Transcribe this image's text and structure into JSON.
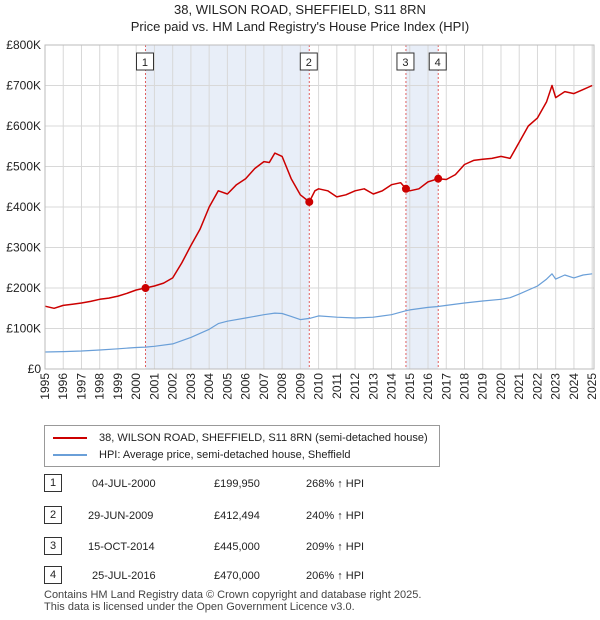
{
  "chart_data": {
    "type": "line",
    "title": "38, WILSON ROAD, SHEFFIELD, S11 8RN",
    "subtitle": "Price paid vs. HM Land Registry's House Price Index (HPI)",
    "xlabel": "",
    "ylabel": "",
    "xlim": [
      1995,
      2025.1
    ],
    "ylim": [
      0,
      800000
    ],
    "x_ticks": [
      "1995",
      "1996",
      "1997",
      "1998",
      "1999",
      "2000",
      "2001",
      "2002",
      "2003",
      "2004",
      "2005",
      "2006",
      "2007",
      "2008",
      "2009",
      "2010",
      "2011",
      "2012",
      "2013",
      "2014",
      "2015",
      "2016",
      "2017",
      "2018",
      "2019",
      "2020",
      "2021",
      "2022",
      "2023",
      "2024",
      "2025"
    ],
    "y_ticks": [
      {
        "value": 0,
        "label": "£0"
      },
      {
        "value": 100000,
        "label": "£100K"
      },
      {
        "value": 200000,
        "label": "£200K"
      },
      {
        "value": 300000,
        "label": "£300K"
      },
      {
        "value": 400000,
        "label": "£400K"
      },
      {
        "value": 500000,
        "label": "£500K"
      },
      {
        "value": 600000,
        "label": "£600K"
      },
      {
        "value": 700000,
        "label": "£700K"
      },
      {
        "value": 800000,
        "label": "£800K"
      }
    ],
    "grid": true,
    "series": [
      {
        "name": "38, WILSON ROAD, SHEFFIELD, S11 8RN (semi-detached house)",
        "color": "#cc0000",
        "x": [
          1995.0,
          1995.5,
          1996.0,
          1996.5,
          1997.0,
          1997.5,
          1998.0,
          1998.5,
          1999.0,
          1999.5,
          2000.0,
          2000.5,
          2001.0,
          2001.5,
          2002.0,
          2002.5,
          2003.0,
          2003.5,
          2004.0,
          2004.5,
          2005.0,
          2005.5,
          2006.0,
          2006.5,
          2007.0,
          2007.3,
          2007.6,
          2008.0,
          2008.5,
          2009.0,
          2009.49,
          2009.8,
          2010.0,
          2010.5,
          2011.0,
          2011.5,
          2012.0,
          2012.5,
          2013.0,
          2013.5,
          2014.0,
          2014.5,
          2014.79,
          2015.0,
          2015.5,
          2016.0,
          2016.56,
          2017.0,
          2017.5,
          2018.0,
          2018.5,
          2019.0,
          2019.5,
          2020.0,
          2020.5,
          2021.0,
          2021.5,
          2022.0,
          2022.5,
          2022.8,
          2023.0,
          2023.5,
          2024.0,
          2024.5,
          2025.0
        ],
        "y": [
          155000,
          150000,
          157000,
          160000,
          163000,
          167000,
          172000,
          175000,
          180000,
          187000,
          195000,
          199950,
          205000,
          212000,
          225000,
          262000,
          305000,
          345000,
          400000,
          440000,
          432000,
          455000,
          470000,
          495000,
          512000,
          510000,
          533000,
          525000,
          470000,
          430000,
          412494,
          440000,
          445000,
          440000,
          425000,
          430000,
          440000,
          445000,
          432000,
          440000,
          455000,
          460000,
          445000,
          440000,
          445000,
          462000,
          470000,
          468000,
          480000,
          505000,
          515000,
          518000,
          520000,
          525000,
          520000,
          560000,
          600000,
          620000,
          660000,
          700000,
          670000,
          685000,
          680000,
          690000,
          700000
        ]
      },
      {
        "name": "HPI: Average price, semi-detached house, Sheffield",
        "color": "#6a9fd8",
        "x": [
          1995.0,
          1996.0,
          1997.0,
          1998.0,
          1999.0,
          2000.0,
          2000.5,
          2001.0,
          2002.0,
          2003.0,
          2004.0,
          2004.5,
          2005.0,
          2006.0,
          2007.0,
          2007.6,
          2008.0,
          2008.5,
          2009.0,
          2009.5,
          2010.0,
          2011.0,
          2012.0,
          2013.0,
          2014.0,
          2014.8,
          2015.0,
          2016.0,
          2016.5,
          2017.0,
          2018.0,
          2019.0,
          2020.0,
          2020.5,
          2021.0,
          2022.0,
          2022.5,
          2022.8,
          2023.0,
          2023.5,
          2024.0,
          2024.5,
          2025.0
        ],
        "y": [
          42000,
          43000,
          44500,
          47000,
          50000,
          53000,
          54000,
          56000,
          62000,
          78000,
          98000,
          112000,
          118000,
          126000,
          134000,
          138000,
          137000,
          130000,
          122000,
          125000,
          131000,
          128000,
          126000,
          128000,
          134000,
          144000,
          146000,
          152000,
          154000,
          157000,
          163000,
          168000,
          172000,
          176000,
          185000,
          205000,
          222000,
          235000,
          222000,
          232000,
          225000,
          232000,
          235000
        ]
      }
    ],
    "markers": [
      {
        "label": "1",
        "x": 2000.51,
        "y": 199950
      },
      {
        "label": "2",
        "x": 2009.49,
        "y": 412494
      },
      {
        "label": "3",
        "x": 2014.79,
        "y": 445000
      },
      {
        "label": "4",
        "x": 2016.56,
        "y": 470000
      }
    ],
    "shaded_ranges": [
      [
        2000.51,
        2009.49
      ],
      [
        2014.79,
        2016.56
      ]
    ]
  },
  "legend": {
    "property_label": "38, WILSON ROAD, SHEFFIELD, S11 8RN (semi-detached house)",
    "hpi_label": "HPI: Average price, semi-detached house, Sheffield",
    "property_color": "#cc0000",
    "hpi_color": "#6a9fd8"
  },
  "transactions": [
    {
      "num": "1",
      "date": "04-JUL-2000",
      "price": "£199,950",
      "hpi": "268% ↑ HPI"
    },
    {
      "num": "2",
      "date": "29-JUN-2009",
      "price": "£412,494",
      "hpi": "240% ↑ HPI"
    },
    {
      "num": "3",
      "date": "15-OCT-2014",
      "price": "£445,000",
      "hpi": "209% ↑ HPI"
    },
    {
      "num": "4",
      "date": "25-JUL-2016",
      "price": "£470,000",
      "hpi": "206% ↑ HPI"
    }
  ],
  "footer": {
    "line1": "Contains HM Land Registry data © Crown copyright and database right 2025.",
    "line2": "This data is licensed under the Open Government Licence v3.0."
  }
}
